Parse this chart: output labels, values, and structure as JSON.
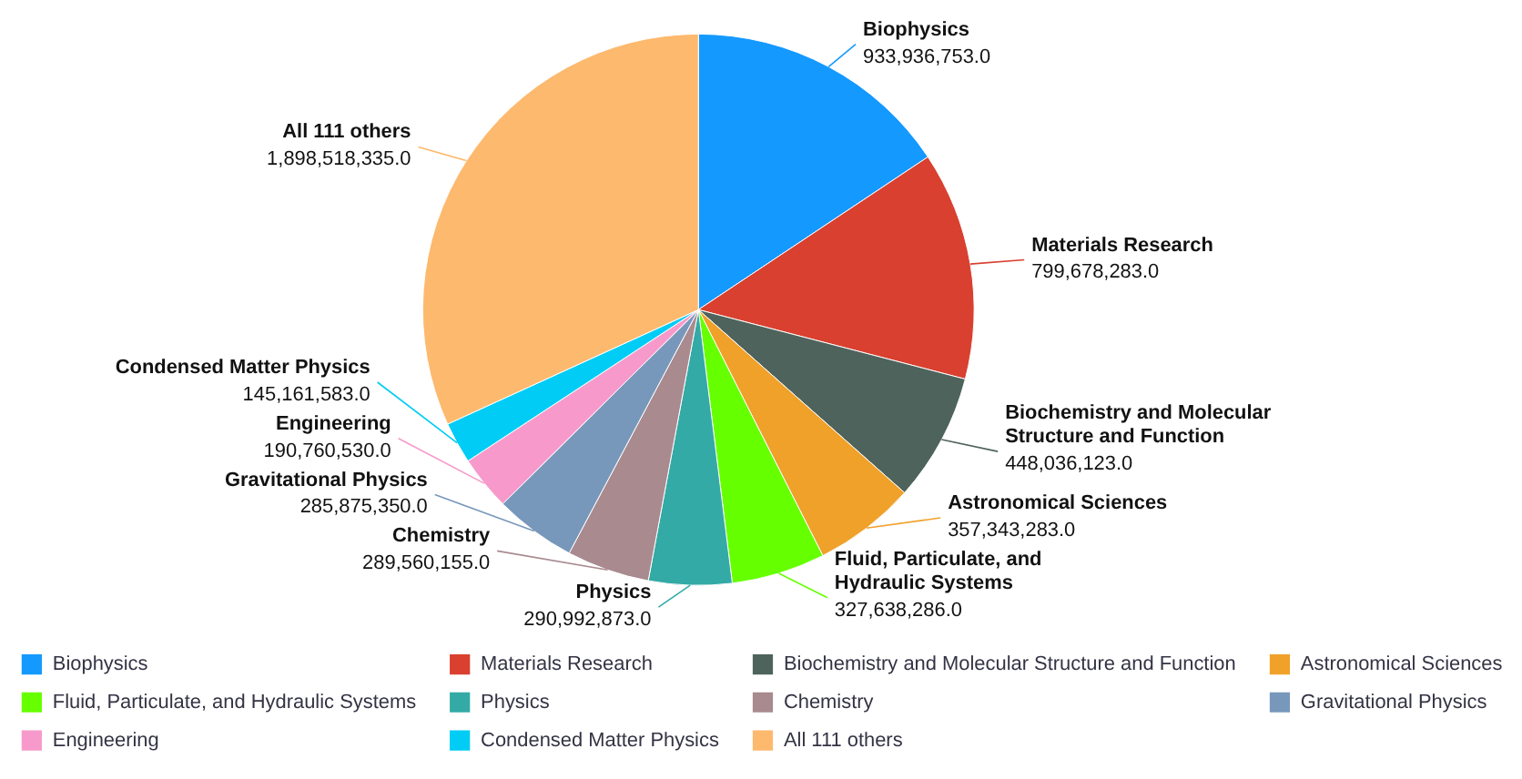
{
  "chart_data": {
    "type": "pie",
    "categories": [
      "Biophysics",
      "Materials Research",
      "Biochemistry and Molecular Structure and Function",
      "Astronomical Sciences",
      "Fluid, Particulate, and Hydraulic Systems",
      "Physics",
      "Chemistry",
      "Gravitational Physics",
      "Engineering",
      "Condensed Matter Physics",
      "All 111 others"
    ],
    "values": [
      933936753.0,
      799678283.0,
      448036123.0,
      357343283.0,
      327638286.0,
      290992873.0,
      289560155.0,
      285875350.0,
      190760530.0,
      145161583.0,
      1898518335.0
    ],
    "value_labels": [
      "933,936,753.0",
      "799,678,283.0",
      "448,036,123.0",
      "357,343,283.0",
      "327,638,286.0",
      "290,992,873.0",
      "289,560,155.0",
      "285,875,350.0",
      "190,760,530.0",
      "145,161,583.0",
      "1,898,518,335.0"
    ],
    "colors": [
      "#1499ff",
      "#d9402f",
      "#4e635b",
      "#f0a12a",
      "#66ff00",
      "#33aaa6",
      "#a88a8f",
      "#7898bb",
      "#f79acb",
      "#00ccf5",
      "#fdb96e"
    ],
    "legend": "bottom"
  }
}
